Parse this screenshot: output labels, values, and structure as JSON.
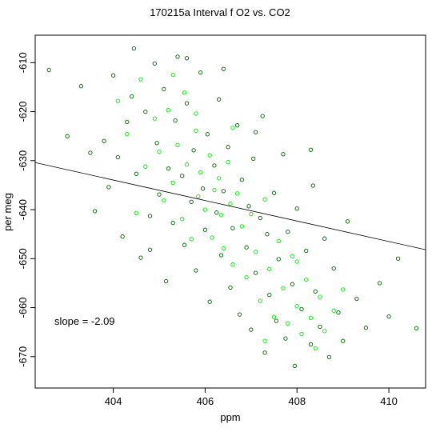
{
  "chart_data": {
    "type": "scatter",
    "title": "170215a   Interval f O2 vs. CO2",
    "xlabel": "ppm",
    "ylabel": "per meg",
    "xlim": [
      402.3,
      410.8
    ],
    "ylim": [
      -676.4,
      -604.4
    ],
    "x_ticks": [
      {
        "value": 404,
        "label": "404"
      },
      {
        "value": 406,
        "label": "406"
      },
      {
        "value": 408,
        "label": "408"
      },
      {
        "value": 410,
        "label": "410"
      }
    ],
    "y_ticks": [
      {
        "value": -610,
        "label": "-610"
      },
      {
        "value": -620,
        "label": "-620"
      },
      {
        "value": -630,
        "label": "-630"
      },
      {
        "value": -640,
        "label": "-640"
      },
      {
        "value": -650,
        "label": "-650"
      },
      {
        "value": -660,
        "label": "-660"
      },
      {
        "value": -670,
        "label": "-670"
      }
    ],
    "annotation": "slope =  -2.09",
    "fit_line": {
      "slope": -2.09,
      "intercept": 210.4
    },
    "colors": {
      "series_a": "#006400",
      "series_b": "#00ee00",
      "line": "#000000"
    },
    "grid": false,
    "series": [
      {
        "color": "#006400",
        "points": [
          [
            402.6,
            -611.5
          ],
          [
            403.0,
            -625.0
          ],
          [
            403.3,
            -614.8
          ],
          [
            403.5,
            -628.4
          ],
          [
            403.6,
            -640.3
          ],
          [
            403.8,
            -626.0
          ],
          [
            403.9,
            -635.4
          ],
          [
            404.0,
            -612.6
          ],
          [
            404.1,
            -629.3
          ],
          [
            404.2,
            -645.5
          ],
          [
            404.3,
            -622.1
          ],
          [
            404.4,
            -616.9
          ],
          [
            404.45,
            -607.1
          ],
          [
            404.5,
            -632.7
          ],
          [
            404.6,
            -649.8
          ],
          [
            404.7,
            -620.0
          ],
          [
            404.8,
            -641.3
          ],
          [
            404.9,
            -610.2
          ],
          [
            404.95,
            -626.4
          ],
          [
            405.0,
            -636.9
          ],
          [
            405.1,
            -615.4
          ],
          [
            405.15,
            -654.6
          ],
          [
            405.2,
            -631.6
          ],
          [
            405.3,
            -642.7
          ],
          [
            405.35,
            -621.8
          ],
          [
            405.4,
            -608.8
          ],
          [
            405.5,
            -633.1
          ],
          [
            405.55,
            -647.2
          ],
          [
            405.6,
            -618.3
          ],
          [
            405.7,
            -638.4
          ],
          [
            405.75,
            -627.9
          ],
          [
            405.8,
            -652.4
          ],
          [
            405.9,
            -612.0
          ],
          [
            405.95,
            -635.7
          ],
          [
            406.0,
            -644.1
          ],
          [
            406.05,
            -624.6
          ],
          [
            406.1,
            -658.8
          ],
          [
            406.2,
            -631.0
          ],
          [
            406.25,
            -640.6
          ],
          [
            406.3,
            -617.5
          ],
          [
            406.35,
            -649.3
          ],
          [
            406.4,
            -636.2
          ],
          [
            406.5,
            -627.2
          ],
          [
            406.55,
            -655.9
          ],
          [
            406.6,
            -643.8
          ],
          [
            406.7,
            -622.8
          ],
          [
            406.75,
            -661.4
          ],
          [
            406.8,
            -633.9
          ],
          [
            406.9,
            -647.7
          ],
          [
            406.95,
            -639.3
          ],
          [
            407.0,
            -664.5
          ],
          [
            407.05,
            -629.6
          ],
          [
            407.1,
            -652.9
          ],
          [
            407.2,
            -641.7
          ],
          [
            407.25,
            -620.9
          ],
          [
            407.3,
            -669.2
          ],
          [
            407.35,
            -645.0
          ],
          [
            407.4,
            -657.4
          ],
          [
            407.5,
            -636.6
          ],
          [
            407.55,
            -662.7
          ],
          [
            407.6,
            -650.1
          ],
          [
            407.7,
            -628.7
          ],
          [
            407.75,
            -666.3
          ],
          [
            407.8,
            -644.5
          ],
          [
            407.9,
            -655.2
          ],
          [
            407.95,
            -671.9
          ],
          [
            408.0,
            -639.8
          ],
          [
            408.1,
            -660.3
          ],
          [
            408.2,
            -648.4
          ],
          [
            408.3,
            -667.5
          ],
          [
            408.35,
            -635.1
          ],
          [
            408.4,
            -656.7
          ],
          [
            408.5,
            -663.9
          ],
          [
            408.6,
            -645.9
          ],
          [
            408.7,
            -670.1
          ],
          [
            408.8,
            -652.0
          ],
          [
            408.9,
            -661.0
          ],
          [
            409.0,
            -666.8
          ],
          [
            409.1,
            -642.4
          ],
          [
            409.3,
            -658.2
          ],
          [
            409.5,
            -664.1
          ],
          [
            409.8,
            -655.0
          ],
          [
            410.0,
            -661.8
          ],
          [
            410.2,
            -650.0
          ],
          [
            410.6,
            -664.2
          ],
          [
            406.4,
            -611.3
          ],
          [
            405.6,
            -609.1
          ],
          [
            407.1,
            -624.2
          ],
          [
            404.8,
            -648.2
          ],
          [
            408.3,
            -627.8
          ]
        ]
      },
      {
        "color": "#00ee00",
        "points": [
          [
            404.1,
            -617.8
          ],
          [
            404.3,
            -624.6
          ],
          [
            404.6,
            -613.4
          ],
          [
            404.7,
            -631.2
          ],
          [
            404.9,
            -621.4
          ],
          [
            405.0,
            -628.2
          ],
          [
            405.1,
            -638.1
          ],
          [
            405.2,
            -619.7
          ],
          [
            405.3,
            -634.5
          ],
          [
            405.4,
            -626.8
          ],
          [
            405.5,
            -641.9
          ],
          [
            405.55,
            -616.1
          ],
          [
            405.6,
            -630.8
          ],
          [
            405.7,
            -646.0
          ],
          [
            405.8,
            -623.9
          ],
          [
            405.85,
            -637.3
          ],
          [
            405.9,
            -632.4
          ],
          [
            406.0,
            -640.0
          ],
          [
            406.1,
            -628.9
          ],
          [
            406.15,
            -645.7
          ],
          [
            406.2,
            -636.0
          ],
          [
            406.3,
            -633.6
          ],
          [
            406.35,
            -641.1
          ],
          [
            406.4,
            -647.9
          ],
          [
            406.5,
            -630.3
          ],
          [
            406.55,
            -638.8
          ],
          [
            406.6,
            -651.2
          ],
          [
            406.7,
            -636.7
          ],
          [
            406.8,
            -643.4
          ],
          [
            406.9,
            -653.8
          ],
          [
            407.0,
            -640.9
          ],
          [
            407.1,
            -648.6
          ],
          [
            407.2,
            -658.6
          ],
          [
            407.3,
            -637.9
          ],
          [
            407.4,
            -652.1
          ],
          [
            407.5,
            -661.9
          ],
          [
            407.6,
            -646.4
          ],
          [
            407.7,
            -656.0
          ],
          [
            407.8,
            -663.2
          ],
          [
            407.9,
            -649.5
          ],
          [
            408.0,
            -659.7
          ],
          [
            408.1,
            -665.4
          ],
          [
            408.2,
            -654.3
          ],
          [
            408.3,
            -662.1
          ],
          [
            408.4,
            -668.3
          ],
          [
            408.5,
            -657.8
          ],
          [
            408.6,
            -664.8
          ],
          [
            408.8,
            -660.6
          ],
          [
            409.0,
            -656.3
          ],
          [
            405.3,
            -612.5
          ],
          [
            405.8,
            -620.4
          ],
          [
            406.6,
            -623.3
          ],
          [
            404.5,
            -640.7
          ],
          [
            407.3,
            -666.8
          ],
          [
            408.0,
            -650.6
          ]
        ]
      }
    ]
  }
}
